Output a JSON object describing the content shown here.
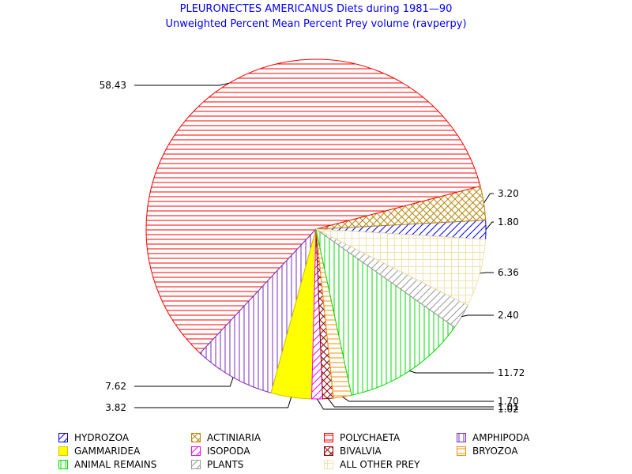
{
  "chart_data": {
    "type": "pie",
    "title": "PLEURONECTES AMERICANUS Diets during 1981—90",
    "subtitle": "Unweighted Percent Mean Percent Prey  volume (ravperpy)",
    "slices": [
      {
        "name": "HYDROZOA",
        "value": 1.8,
        "color": "#0000ff",
        "pattern": "diag"
      },
      {
        "name": "ACTINIARIA",
        "value": 3.2,
        "color": "#b8860b",
        "pattern": "cross"
      },
      {
        "name": "POLYCHAETA",
        "value": 58.43,
        "color": "#ff0000",
        "pattern": "horiz"
      },
      {
        "name": "AMPHIPODA",
        "value": 7.62,
        "color": "#7b2cbf",
        "pattern": "vert"
      },
      {
        "name": "GAMMARIDEA",
        "value": 3.82,
        "color": "#ffff00",
        "pattern": "solid"
      },
      {
        "name": "ISOPODA",
        "value": 1.02,
        "color": "#ff00ff",
        "pattern": "diag"
      },
      {
        "name": "BIVALVIA",
        "value": 1.01,
        "color": "#8b0000",
        "pattern": "cross"
      },
      {
        "name": "BRYOZOA",
        "value": 1.7,
        "color": "#ff8c00",
        "pattern": "horiz"
      },
      {
        "name": "ANIMAL REMAINS",
        "value": 11.72,
        "color": "#00dd00",
        "pattern": "vert"
      },
      {
        "name": "PLANTS",
        "value": 2.4,
        "color": "#999999",
        "pattern": "diag"
      },
      {
        "name": "ALL OTHER PREY",
        "value": 6.36,
        "color": "#f0e2b0",
        "pattern": "grid"
      }
    ],
    "data_labels": [
      "1.80",
      "3.20",
      "58.43",
      "7.62",
      "3.82",
      "1.02",
      "1.01",
      "1.70",
      "11.72",
      "2.40",
      "6.36"
    ]
  }
}
